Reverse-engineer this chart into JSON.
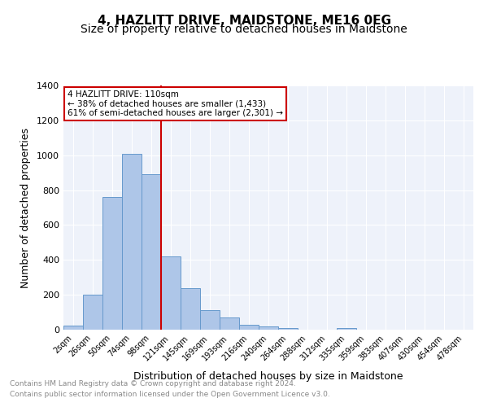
{
  "title": "4, HAZLITT DRIVE, MAIDSTONE, ME16 0EG",
  "subtitle": "Size of property relative to detached houses in Maidstone",
  "xlabel": "Distribution of detached houses by size in Maidstone",
  "ylabel": "Number of detached properties",
  "bin_labels": [
    "2sqm",
    "26sqm",
    "50sqm",
    "74sqm",
    "98sqm",
    "121sqm",
    "145sqm",
    "169sqm",
    "193sqm",
    "216sqm",
    "240sqm",
    "264sqm",
    "288sqm",
    "312sqm",
    "335sqm",
    "359sqm",
    "383sqm",
    "407sqm",
    "430sqm",
    "454sqm",
    "478sqm"
  ],
  "bar_heights": [
    25,
    200,
    760,
    1010,
    890,
    420,
    238,
    112,
    68,
    28,
    18,
    8,
    0,
    0,
    10,
    0,
    0,
    0,
    0,
    0,
    0
  ],
  "bar_color": "#aec6e8",
  "bar_edge_color": "#6699cc",
  "vline_x": 4.5,
  "vline_color": "#cc0000",
  "annotation_title": "4 HAZLITT DRIVE: 110sqm",
  "annotation_line1": "← 38% of detached houses are smaller (1,433)",
  "annotation_line2": "61% of semi-detached houses are larger (2,301) →",
  "annotation_box_color": "#cc0000",
  "ylim": [
    0,
    1400
  ],
  "yticks": [
    0,
    200,
    400,
    600,
    800,
    1000,
    1200,
    1400
  ],
  "plot_bg_color": "#eef2fa",
  "footer_line1": "Contains HM Land Registry data © Crown copyright and database right 2024.",
  "footer_line2": "Contains public sector information licensed under the Open Government Licence v3.0.",
  "title_fontsize": 11,
  "subtitle_fontsize": 10,
  "xlabel_fontsize": 9,
  "ylabel_fontsize": 9
}
